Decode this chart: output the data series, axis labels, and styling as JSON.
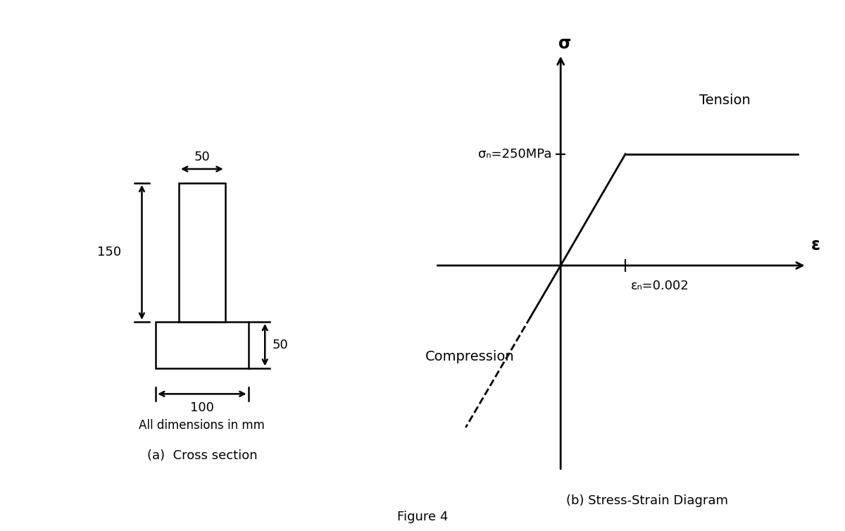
{
  "background_color": "#ffffff",
  "fig_width": 12.0,
  "fig_height": 7.54,
  "cross_section": {
    "dim_50_web": "50",
    "dim_150": "150",
    "dim_100": "100",
    "dim_50_flange": "50",
    "dim_text": "All dimensions in mm",
    "caption": "(a)  Cross section"
  },
  "stress_strain": {
    "tension_label": "Tension",
    "compression_label": "Compression",
    "sigma_label": "σ",
    "epsilon_label": "ε",
    "sigma_y_label": "σₙ=250MPa",
    "epsilon_y_label": "εₙ=0.002",
    "caption": "(b) Stress-Strain Diagram"
  },
  "figure_caption": "Figure 4"
}
